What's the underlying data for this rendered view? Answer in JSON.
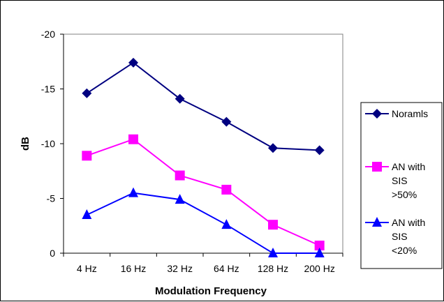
{
  "chart_data": {
    "type": "line",
    "xlabel": "Modulation Frequency",
    "ylabel": "dB",
    "categories": [
      "4 Hz",
      "16 Hz",
      "32 Hz",
      "64 Hz",
      "128 Hz",
      "200 Hz"
    ],
    "y_ticks": [
      "-20",
      "-15",
      "-10",
      "-5",
      "0"
    ],
    "ylim": [
      0,
      -20
    ],
    "y_axis_reversed": true,
    "grid": false,
    "legend_position": "right",
    "series": [
      {
        "name": "Noramls",
        "legend_lines": [
          "Noramls"
        ],
        "color": "#000080",
        "marker": "diamond",
        "values": [
          -14.6,
          -17.4,
          -14.1,
          -12.0,
          -9.6,
          -9.4
        ]
      },
      {
        "name": "AN with SIS >50%",
        "legend_lines": [
          "AN with",
          "SIS",
          ">50%"
        ],
        "color": "#ff00ff",
        "marker": "square",
        "values": [
          -8.9,
          -10.4,
          -7.1,
          -5.8,
          -2.6,
          -0.7
        ]
      },
      {
        "name": "AN with SIS <20%",
        "legend_lines": [
          "AN with",
          "SIS",
          "<20%"
        ],
        "color": "#0000ff",
        "marker": "triangle",
        "values": [
          -3.5,
          -5.5,
          -4.9,
          -2.6,
          0.0,
          0.0
        ]
      }
    ]
  }
}
